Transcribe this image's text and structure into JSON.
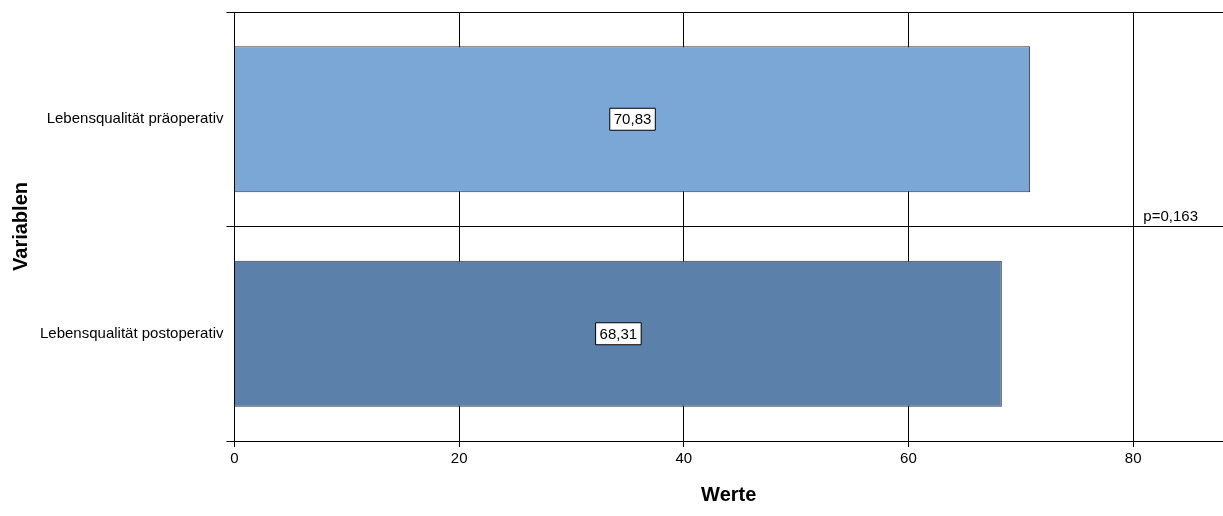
{
  "chart_data": {
    "type": "bar",
    "orientation": "horizontal",
    "xlabel": "Werte",
    "ylabel": "Variablen",
    "categories": [
      "Lebensqualität präoperativ",
      "Lebensqualität postoperativ"
    ],
    "values": [
      70.83,
      68.31
    ],
    "colors": [
      "#7aa7d6",
      "#5b80aa"
    ],
    "value_labels": [
      "70,83",
      "68,31"
    ],
    "xlim": [
      0,
      88
    ],
    "xticks": [
      0,
      20,
      40,
      60,
      80
    ],
    "grid": true,
    "annotations": [
      "p=0,163"
    ]
  }
}
